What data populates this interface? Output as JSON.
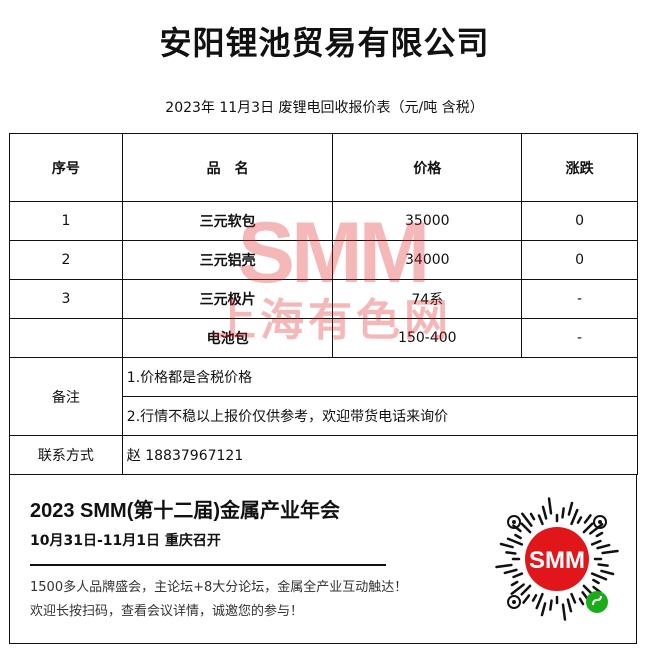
{
  "title": "安阳锂池贸易有限公司",
  "subtitle": "2023年 11月3日 废锂电回收报价表（元/吨  含税）",
  "table": {
    "headers": [
      "序号",
      "品　名",
      "价格",
      "涨跌"
    ],
    "rows": [
      {
        "no": "1",
        "name": "三元软包",
        "price": "35000",
        "change": "0"
      },
      {
        "no": "2",
        "name": "三元铝壳",
        "price": "34000",
        "change": "0"
      },
      {
        "no": "3",
        "name": "三元极片",
        "price": "74系",
        "change": "-"
      },
      {
        "no": "",
        "name": "电池包",
        "price": "150-400",
        "change": "-"
      }
    ],
    "remarks_label": "备注",
    "remarks": [
      "1.价格都是含税价格",
      "2.行情不稳以上报价仅供参考，欢迎带货电话来询价"
    ],
    "contact_label": "联系方式",
    "contact": "赵 18837967121"
  },
  "watermark": {
    "logo": "SMM",
    "text": "上海有色网"
  },
  "promo": {
    "title": "2023 SMM(第十二届)金属产业年会",
    "date": "10月31日-11月1日  重庆召开",
    "line1": "1500多人品牌盛会，主论坛+8大分论坛，金属全产业互动触达！",
    "line2": "欢迎长按扫码，查看会议详情，诚邀您的参与！",
    "qr_logo": "SMM"
  },
  "colors": {
    "brand": "#e0161b",
    "mini_program": "#1aad19"
  }
}
